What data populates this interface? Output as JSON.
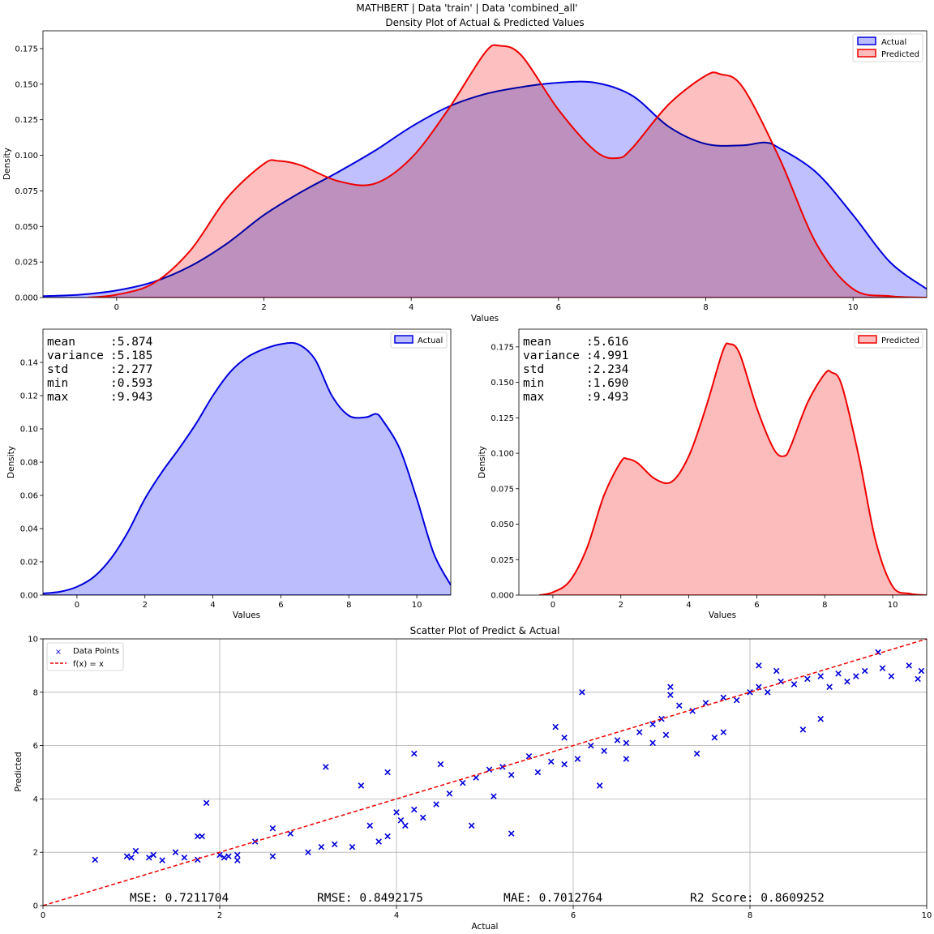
{
  "figure": {
    "suptitle": "MATHBERT | Data 'train' | Data 'combined_all'",
    "colors": {
      "actual": "#0000dd",
      "actual_fill": "#bcbdfd",
      "predicted": "#ee0000",
      "predicted_fill": "#fdbcbc",
      "overlap_fill": "#cd8dc0",
      "scatter": "#0000dd",
      "diag": "#ee0000"
    }
  },
  "chart_data": [
    {
      "type": "area",
      "title": "Density Plot of Actual & Predicted Values",
      "xlabel": "Values",
      "ylabel": "Density",
      "xlim": [
        -1,
        11
      ],
      "ylim": [
        0,
        0.1875
      ],
      "xticks": [
        0,
        2,
        4,
        6,
        8,
        10
      ],
      "yticks": [
        "0.000",
        "0.025",
        "0.050",
        "0.075",
        "0.100",
        "0.125",
        "0.150",
        "0.175"
      ],
      "legend": "top-right",
      "series": [
        {
          "name": "Actual",
          "x": [
            -1,
            -0.5,
            0,
            0.5,
            1,
            1.5,
            2,
            2.5,
            3,
            3.5,
            4,
            4.5,
            5,
            5.5,
            6,
            6.5,
            7,
            7.5,
            8,
            8.5,
            8.8,
            9,
            9.5,
            10,
            10.5,
            11
          ],
          "y": [
            0.001,
            0.002,
            0.005,
            0.011,
            0.022,
            0.038,
            0.058,
            0.074,
            0.088,
            0.103,
            0.12,
            0.134,
            0.143,
            0.148,
            0.151,
            0.151,
            0.142,
            0.12,
            0.108,
            0.107,
            0.109,
            0.105,
            0.088,
            0.058,
            0.025,
            0.006
          ]
        },
        {
          "name": "Predicted",
          "x": [
            -0.4,
            0,
            0.5,
            1,
            1.5,
            2,
            2.2,
            2.5,
            3,
            3.5,
            4,
            4.5,
            5,
            5.2,
            5.5,
            6,
            6.5,
            6.8,
            7,
            7.5,
            8,
            8.2,
            8.5,
            9,
            9.5,
            10,
            10.5,
            11
          ],
          "y": [
            0,
            0.002,
            0.01,
            0.033,
            0.07,
            0.094,
            0.096,
            0.093,
            0.082,
            0.08,
            0.098,
            0.132,
            0.172,
            0.177,
            0.17,
            0.132,
            0.103,
            0.098,
            0.105,
            0.136,
            0.156,
            0.157,
            0.148,
            0.098,
            0.038,
            0.006,
            0.001,
            0
          ]
        }
      ]
    },
    {
      "type": "area",
      "title": "",
      "xlabel": "Values",
      "ylabel": "Density",
      "xlim": [
        -1,
        11
      ],
      "ylim": [
        0,
        0.16
      ],
      "xticks": [
        0,
        2,
        4,
        6,
        8,
        10
      ],
      "yticks": [
        "0.00",
        "0.02",
        "0.04",
        "0.06",
        "0.08",
        "0.10",
        "0.12",
        "0.14"
      ],
      "legend": "top-right",
      "stats": [
        {
          "label": "mean",
          "value": ":5.874"
        },
        {
          "label": "variance",
          "value": ":5.185"
        },
        {
          "label": "std",
          "value": ":2.277"
        },
        {
          "label": "min",
          "value": ":0.593"
        },
        {
          "label": "max",
          "value": ":9.943"
        }
      ],
      "series": [
        {
          "name": "Actual",
          "x": [
            -1,
            -0.5,
            0,
            0.5,
            1,
            1.5,
            2,
            2.5,
            3,
            3.5,
            4,
            4.5,
            5,
            5.5,
            6,
            6.5,
            7,
            7.5,
            8,
            8.5,
            8.8,
            9,
            9.5,
            10,
            10.5,
            11
          ],
          "y": [
            0.001,
            0.002,
            0.005,
            0.011,
            0.022,
            0.038,
            0.058,
            0.074,
            0.088,
            0.103,
            0.12,
            0.134,
            0.143,
            0.148,
            0.151,
            0.151,
            0.142,
            0.12,
            0.108,
            0.107,
            0.109,
            0.105,
            0.088,
            0.058,
            0.025,
            0.006
          ]
        }
      ]
    },
    {
      "type": "area",
      "title": "",
      "xlabel": "Values",
      "ylabel": "Density",
      "xlim": [
        -1,
        11
      ],
      "ylim": [
        0,
        0.1875
      ],
      "xticks": [
        0,
        2,
        4,
        6,
        8,
        10
      ],
      "yticks": [
        "0.000",
        "0.025",
        "0.050",
        "0.075",
        "0.100",
        "0.125",
        "0.150",
        "0.175"
      ],
      "legend": "top-right",
      "stats": [
        {
          "label": "mean",
          "value": ":5.616"
        },
        {
          "label": "variance",
          "value": ":4.991"
        },
        {
          "label": "std",
          "value": ":2.234"
        },
        {
          "label": "min",
          "value": ":1.690"
        },
        {
          "label": "max",
          "value": ":9.493"
        }
      ],
      "series": [
        {
          "name": "Predicted",
          "x": [
            -0.4,
            0,
            0.5,
            1,
            1.5,
            2,
            2.2,
            2.5,
            3,
            3.5,
            4,
            4.5,
            5,
            5.2,
            5.5,
            6,
            6.5,
            6.8,
            7,
            7.5,
            8,
            8.2,
            8.5,
            9,
            9.5,
            10,
            10.5,
            11
          ],
          "y": [
            0,
            0.002,
            0.01,
            0.033,
            0.07,
            0.094,
            0.096,
            0.093,
            0.082,
            0.08,
            0.098,
            0.132,
            0.172,
            0.177,
            0.17,
            0.132,
            0.103,
            0.098,
            0.105,
            0.136,
            0.156,
            0.157,
            0.148,
            0.098,
            0.038,
            0.006,
            0.001,
            0
          ]
        }
      ]
    },
    {
      "type": "scatter",
      "title": "Scatter Plot of Predict & Actual",
      "xlabel": "Actual",
      "ylabel": "Predicted",
      "xlim": [
        0,
        10
      ],
      "ylim": [
        0,
        10
      ],
      "xticks": [
        0,
        2,
        4,
        6,
        8,
        10
      ],
      "yticks": [
        0,
        2,
        4,
        6,
        8,
        10
      ],
      "grid": true,
      "legend": "top-left",
      "series": [
        {
          "name": "Data Points",
          "x": [
            0.59,
            0.95,
            1.0,
            1.05,
            1.2,
            1.25,
            1.35,
            1.5,
            1.75,
            1.8,
            1.85,
            2.0,
            2.05,
            2.1,
            2.2,
            2.4,
            2.6,
            2.8,
            3.0,
            3.15,
            3.3,
            3.5,
            3.7,
            3.8,
            3.9,
            4.0,
            4.05,
            4.1,
            4.2,
            4.3,
            4.45,
            4.6,
            4.75,
            4.9,
            5.05,
            5.2,
            5.3,
            5.5,
            5.6,
            5.75,
            5.9,
            6.05,
            6.2,
            6.35,
            6.5,
            6.6,
            6.75,
            6.9,
            7.0,
            7.05,
            7.1,
            7.2,
            7.35,
            7.5,
            7.7,
            7.85,
            8.0,
            8.1,
            8.2,
            8.35,
            8.5,
            8.65,
            8.8,
            8.9,
            9.0,
            9.1,
            9.3,
            9.5,
            9.6,
            9.8,
            9.9,
            9.94,
            3.2,
            4.5,
            5.3,
            6.1,
            7.7,
            8.1,
            1.75,
            1.6,
            2.2,
            2.6,
            3.6,
            4.85,
            5.9,
            6.6,
            7.4,
            8.6,
            9.2,
            9.45,
            3.9,
            4.2,
            5.1,
            5.8,
            6.3,
            6.9,
            7.1,
            7.6,
            8.3,
            8.8
          ],
          "y": [
            1.72,
            1.85,
            1.8,
            2.05,
            1.8,
            1.9,
            1.7,
            2.0,
            1.72,
            2.6,
            3.85,
            1.9,
            1.8,
            1.85,
            1.9,
            2.4,
            1.85,
            2.7,
            2.0,
            2.2,
            2.3,
            2.2,
            3.0,
            2.4,
            2.6,
            3.5,
            3.2,
            3.0,
            3.6,
            3.3,
            3.8,
            4.2,
            4.6,
            4.8,
            5.1,
            5.2,
            4.9,
            5.6,
            5.0,
            5.4,
            5.3,
            5.5,
            6.0,
            5.8,
            6.2,
            6.1,
            6.5,
            6.8,
            7.0,
            6.4,
            7.9,
            7.5,
            7.3,
            7.6,
            7.8,
            7.7,
            8.0,
            8.2,
            8.0,
            8.4,
            8.3,
            8.5,
            8.6,
            8.2,
            8.7,
            8.4,
            8.8,
            8.9,
            8.6,
            9.0,
            8.5,
            8.8,
            5.2,
            5.3,
            2.7,
            8.0,
            6.5,
            9.0,
            2.6,
            1.8,
            1.7,
            2.9,
            4.5,
            3.0,
            6.3,
            5.5,
            5.7,
            6.6,
            8.6,
            9.5,
            5.0,
            5.7,
            4.1,
            6.7,
            4.5,
            6.1,
            8.2,
            6.3,
            8.8,
            7.0
          ]
        },
        {
          "name": "f(x) = x",
          "x": [
            0,
            10
          ],
          "y": [
            0,
            10
          ]
        }
      ],
      "metrics": [
        "MSE: 0.7211704",
        "RMSE: 0.8492175",
        "MAE: 0.7012764",
        "R2 Score: 0.8609252"
      ]
    }
  ]
}
